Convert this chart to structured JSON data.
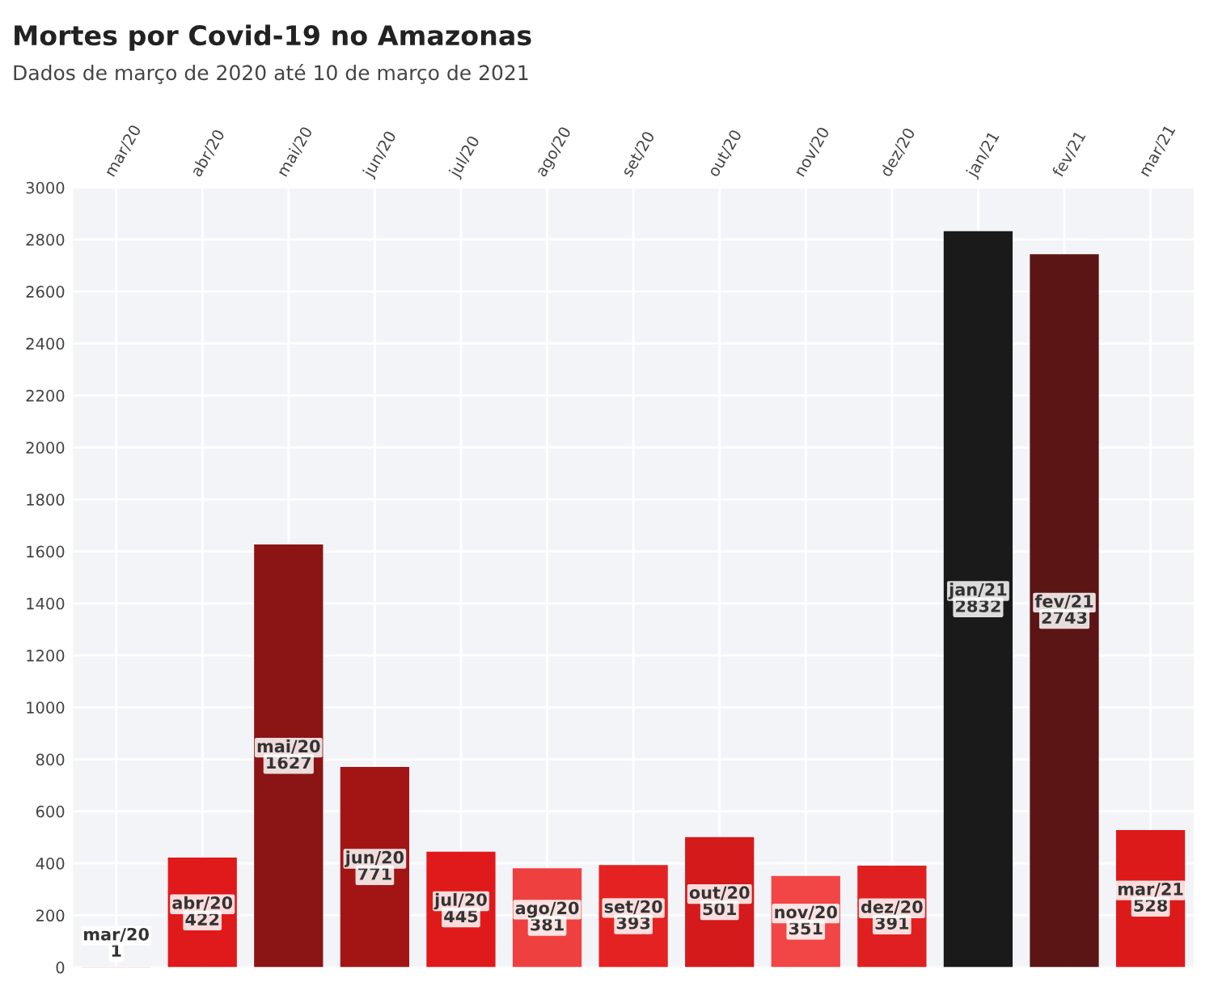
{
  "chart_data": {
    "type": "bar",
    "title": "Mortes por Covid-19 no Amazonas",
    "subtitle": "Dados de março de 2020 até 10 de março de 2021",
    "categories": [
      "mar/20",
      "abr/20",
      "mai/20",
      "jun/20",
      "jul/20",
      "ago/20",
      "set/20",
      "out/20",
      "nov/20",
      "dez/20",
      "jan/21",
      "fev/21",
      "mar/21"
    ],
    "values": [
      1,
      422,
      1627,
      771,
      445,
      381,
      393,
      501,
      351,
      391,
      2832,
      2743,
      528
    ],
    "colors": [
      "#e01a1a",
      "#e0191b",
      "#8b1414",
      "#a31515",
      "#e01a1a",
      "#ef4040",
      "#e52222",
      "#d41a1a",
      "#f24545",
      "#e02020",
      "#1a1a1a",
      "#5c1515",
      "#dd1a1a"
    ],
    "data_labels": true,
    "ylim": [
      0,
      3000
    ],
    "yticks": [
      0,
      200,
      400,
      600,
      800,
      1000,
      1200,
      1400,
      1600,
      1800,
      2000,
      2200,
      2400,
      2600,
      2800,
      3000
    ],
    "grid": true
  }
}
